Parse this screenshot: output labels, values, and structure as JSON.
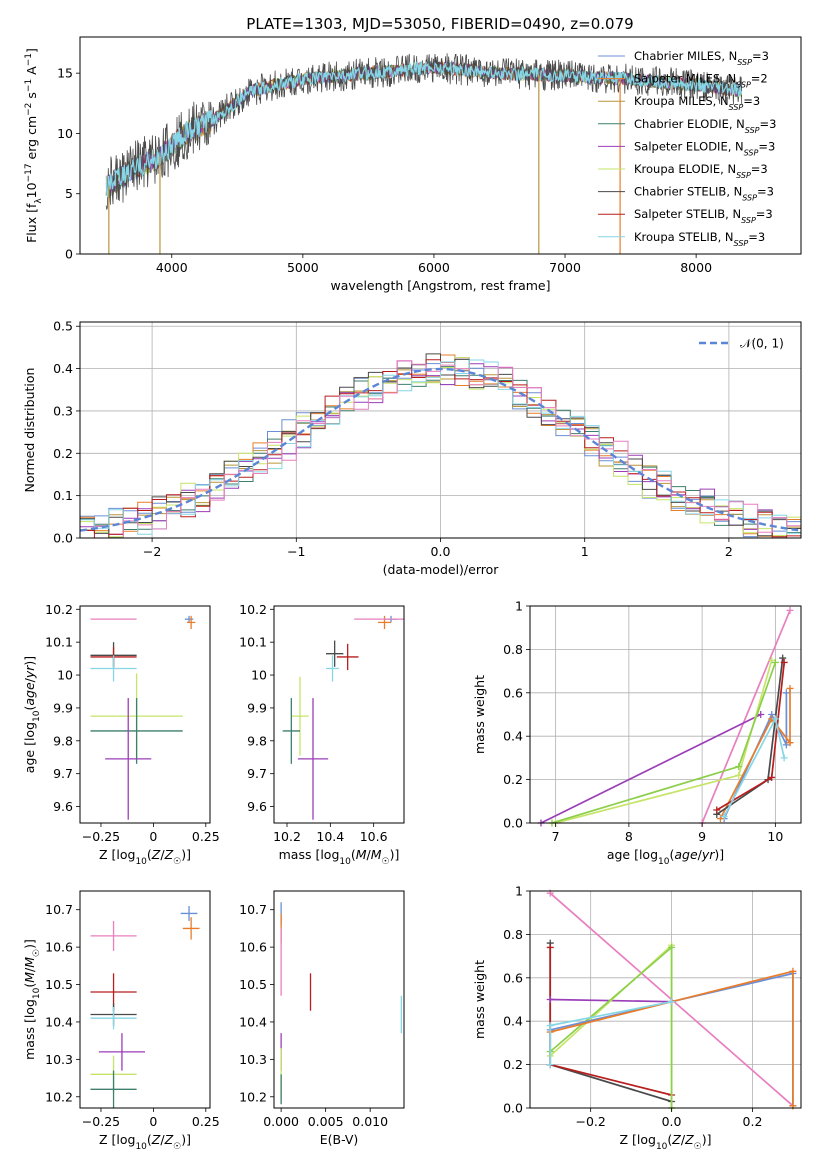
{
  "figure": {
    "title": "PLATE=1303, MJD=53050, FIBERID=0490, z=0.079"
  },
  "colors": {
    "Chabrier MILES": "#6b8fd6",
    "Salpeter MILES": "#e87d2b",
    "Kroupa MILES": "#b8963a",
    "Chabrier ELODIE": "#3f7f6e",
    "Salpeter ELODIE": "#9b3fb8",
    "Kroupa ELODIE": "#c6e46a",
    "Chabrier STELIB": "#4a4a4a",
    "Salpeter STELIB": "#b81e1e",
    "Kroupa STELIB": "#86d6e6",
    "pink": "#e87fbf",
    "green": "#8ccf4a",
    "gauss": "#5b86d6"
  },
  "chart_data": [
    {
      "id": "spectrum",
      "type": "line",
      "xlabel": "wavelength [Angstrom, rest frame]",
      "ylabel": "Flux [f_λ 10^-17 erg cm^-2 s^-1 A^-1]",
      "xlim": [
        3300,
        8800
      ],
      "ylim": [
        0,
        18
      ],
      "xticks": [
        4000,
        5000,
        6000,
        7000,
        8000
      ],
      "yticks": [
        0,
        5,
        10,
        15
      ],
      "grid": false,
      "legend_position": "top-right",
      "legend": [
        {
          "base": "Chabrier MILES, N",
          "sub": "SSP",
          "tail": "=3"
        },
        {
          "base": "Salpeter MILES, N",
          "sub": "SSP",
          "tail": "=2"
        },
        {
          "base": "Kroupa MILES, N",
          "sub": "SSP",
          "tail": "=3"
        },
        {
          "base": "Chabrier ELODIE, N",
          "sub": "SSP",
          "tail": "=3"
        },
        {
          "base": "Salpeter ELODIE, N",
          "sub": "SSP",
          "tail": "=3"
        },
        {
          "base": "Kroupa ELODIE, N",
          "sub": "SSP",
          "tail": "=3"
        },
        {
          "base": "Chabrier STELIB, N",
          "sub": "SSP",
          "tail": "=3"
        },
        {
          "base": "Salpeter STELIB, N",
          "sub": "SSP",
          "tail": "=3"
        },
        {
          "base": "Kroupa STELIB, N",
          "sub": "SSP",
          "tail": "=3"
        }
      ],
      "continuum": [
        [
          3500,
          5.5
        ],
        [
          3700,
          7
        ],
        [
          3900,
          8
        ],
        [
          4100,
          10
        ],
        [
          4300,
          11
        ],
        [
          4600,
          13.5
        ],
        [
          5000,
          14.5
        ],
        [
          5500,
          15
        ],
        [
          6000,
          15.5
        ],
        [
          6500,
          15
        ],
        [
          7000,
          14.8
        ],
        [
          7500,
          14.5
        ],
        [
          8000,
          14
        ],
        [
          8350,
          13.5
        ]
      ],
      "dips": [
        [
          3520,
          0
        ],
        [
          3910,
          0
        ],
        [
          6800,
          0
        ],
        [
          7420,
          0
        ]
      ]
    },
    {
      "id": "residuals",
      "type": "histogram",
      "xlabel": "(data-model)/error",
      "ylabel": "Normed distribution",
      "xlim": [
        -2.5,
        2.5
      ],
      "ylim": [
        0,
        0.51
      ],
      "xticks": [
        -2,
        -1,
        0,
        1,
        2
      ],
      "yticks": [
        0.0,
        0.1,
        0.2,
        0.3,
        0.4,
        0.5
      ],
      "grid": true,
      "legend_position": "top-right",
      "legend": "𝒩(0, 1)",
      "gaussian": {
        "mu": 0,
        "sigma": 1
      }
    },
    {
      "id": "age-vs-Z",
      "type": "errorbar",
      "xlabel": "Z [log10(Z/Z☉)]",
      "ylabel": "age [log10(age/yr)]",
      "xlim": [
        -0.35,
        0.27
      ],
      "ylim": [
        9.55,
        10.21
      ],
      "xticks": [
        -0.25,
        0.0,
        0.25
      ],
      "yticks": [
        9.6,
        9.7,
        9.8,
        9.9,
        10.0,
        10.1,
        10.2
      ],
      "points": [
        {
          "x": 0.17,
          "y": 10.17,
          "xe": 0.02,
          "ye": 0.01,
          "series": "Chabrier MILES"
        },
        {
          "x": 0.18,
          "y": 10.16,
          "xe": 0.02,
          "ye": 0.02,
          "series": "Salpeter MILES"
        },
        {
          "x": -0.19,
          "y": 10.17,
          "xe": 0.11,
          "ye": 0.0,
          "series": "pink"
        },
        {
          "x": -0.19,
          "y": 10.06,
          "xe": 0.11,
          "ye": 0.04,
          "series": "Chabrier STELIB"
        },
        {
          "x": -0.19,
          "y": 10.055,
          "xe": 0.11,
          "ye": 0.03,
          "series": "Salpeter STELIB"
        },
        {
          "x": -0.19,
          "y": 10.02,
          "xe": 0.11,
          "ye": 0.04,
          "series": "Kroupa STELIB"
        },
        {
          "x": -0.08,
          "y": 9.875,
          "xe": 0.22,
          "ye": 0.13,
          "series": "Kroupa ELODIE"
        },
        {
          "x": -0.08,
          "y": 9.83,
          "xe": 0.22,
          "ye": 0.1,
          "series": "Chabrier ELODIE"
        },
        {
          "x": -0.12,
          "y": 9.745,
          "xe": 0.11,
          "ye": 0.185,
          "series": "Salpeter ELODIE"
        }
      ]
    },
    {
      "id": "age-vs-mass",
      "type": "errorbar",
      "xlabel": "mass [log10(M/M☉)]",
      "ylabel": "",
      "xlim": [
        10.14,
        10.74
      ],
      "ylim": [
        9.55,
        10.21
      ],
      "xticks": [
        10.2,
        10.4,
        10.6
      ],
      "yticks": [
        9.6,
        9.7,
        9.8,
        9.9,
        10.0,
        10.1,
        10.2
      ],
      "points": [
        {
          "x": 10.68,
          "y": 10.17,
          "xe": 0.03,
          "ye": 0.01,
          "series": "Chabrier MILES"
        },
        {
          "x": 10.65,
          "y": 10.16,
          "xe": 0.03,
          "ye": 0.02,
          "series": "Salpeter MILES"
        },
        {
          "x": 10.63,
          "y": 10.17,
          "xe": 0.12,
          "ye": 0.0,
          "series": "pink"
        },
        {
          "x": 10.48,
          "y": 10.055,
          "xe": 0.05,
          "ye": 0.04,
          "series": "Salpeter STELIB"
        },
        {
          "x": 10.42,
          "y": 10.065,
          "xe": 0.04,
          "ye": 0.04,
          "series": "Chabrier STELIB"
        },
        {
          "x": 10.41,
          "y": 10.02,
          "xe": 0.03,
          "ye": 0.04,
          "series": "Kroupa STELIB"
        },
        {
          "x": 10.26,
          "y": 9.875,
          "xe": 0.04,
          "ye": 0.12,
          "series": "Kroupa ELODIE"
        },
        {
          "x": 10.22,
          "y": 9.83,
          "xe": 0.04,
          "ye": 0.1,
          "series": "Chabrier ELODIE"
        },
        {
          "x": 10.32,
          "y": 9.745,
          "xe": 0.07,
          "ye": 0.185,
          "series": "Salpeter ELODIE"
        }
      ]
    },
    {
      "id": "weight-vs-age",
      "type": "line",
      "xlabel": "age [log10(age/yr)]",
      "ylabel": "mass weight",
      "xlim": [
        6.65,
        10.35
      ],
      "ylim": [
        0,
        1
      ],
      "xticks": [
        7,
        8,
        9,
        10
      ],
      "yticks": [
        0.0,
        0.2,
        0.4,
        0.6,
        0.8,
        1.0
      ],
      "grid": true,
      "series": [
        {
          "color": "pink",
          "x": [
            9.0,
            10.2
          ],
          "y": [
            0.0,
            0.98
          ]
        },
        {
          "color": "Salpeter ELODIE",
          "x": [
            6.8,
            9.8
          ],
          "y": [
            0.0,
            0.5
          ]
        },
        {
          "color": "Kroupa ELODIE",
          "x": [
            7.0,
            9.5,
            9.95
          ],
          "y": [
            0.0,
            0.22,
            0.75
          ]
        },
        {
          "color": "green",
          "x": [
            6.95,
            9.5,
            10.0
          ],
          "y": [
            0.0,
            0.26,
            0.74
          ]
        },
        {
          "color": "Chabrier MILES",
          "x": [
            9.3,
            9.95,
            10.15,
            10.15
          ],
          "y": [
            0.02,
            0.5,
            0.36,
            0.6
          ]
        },
        {
          "color": "Salpeter MILES",
          "x": [
            9.25,
            9.95,
            10.2,
            10.2
          ],
          "y": [
            0.02,
            0.48,
            0.37,
            0.62
          ]
        },
        {
          "color": "Chabrier STELIB",
          "x": [
            9.2,
            9.9,
            10.1
          ],
          "y": [
            0.04,
            0.2,
            0.76
          ]
        },
        {
          "color": "Salpeter STELIB",
          "x": [
            9.2,
            9.95,
            10.12
          ],
          "y": [
            0.06,
            0.21,
            0.74
          ]
        },
        {
          "color": "Kroupa STELIB",
          "x": [
            9.3,
            10.0,
            10.12
          ],
          "y": [
            0.03,
            0.48,
            0.3
          ]
        }
      ]
    },
    {
      "id": "mass-vs-Z",
      "type": "errorbar",
      "xlabel": "Z [log10(Z/Z☉)]",
      "ylabel": "mass [log10(M/M☉)]",
      "xlim": [
        -0.35,
        0.27
      ],
      "ylim": [
        10.17,
        10.75
      ],
      "xticks": [
        -0.25,
        0.0,
        0.25
      ],
      "yticks": [
        10.2,
        10.3,
        10.4,
        10.5,
        10.6,
        10.7
      ],
      "points": [
        {
          "x": 0.17,
          "y": 10.69,
          "xe": 0.04,
          "ye": 0.02,
          "series": "Chabrier MILES"
        },
        {
          "x": 0.18,
          "y": 10.65,
          "xe": 0.04,
          "ye": 0.03,
          "series": "Salpeter MILES"
        },
        {
          "x": -0.19,
          "y": 10.63,
          "xe": 0.11,
          "ye": 0.04,
          "series": "pink"
        },
        {
          "x": -0.19,
          "y": 10.48,
          "xe": 0.11,
          "ye": 0.05,
          "series": "Salpeter STELIB"
        },
        {
          "x": -0.19,
          "y": 10.42,
          "xe": 0.11,
          "ye": 0.03,
          "series": "Chabrier STELIB"
        },
        {
          "x": -0.19,
          "y": 10.41,
          "xe": 0.11,
          "ye": 0.03,
          "series": "Kroupa STELIB"
        },
        {
          "x": -0.15,
          "y": 10.32,
          "xe": 0.11,
          "ye": 0.05,
          "series": "Salpeter ELODIE"
        },
        {
          "x": -0.19,
          "y": 10.26,
          "xe": 0.11,
          "ye": 0.05,
          "series": "Kroupa ELODIE"
        },
        {
          "x": -0.19,
          "y": 10.22,
          "xe": 0.11,
          "ye": 0.05,
          "series": "Chabrier ELODIE"
        }
      ]
    },
    {
      "id": "mass-vs-EBV",
      "type": "errorbar",
      "xlabel": "E(B-V)",
      "ylabel": "",
      "xlim": [
        -0.0008,
        0.0138
      ],
      "ylim": [
        10.17,
        10.75
      ],
      "xticks": [
        0.0,
        0.005,
        0.01
      ],
      "xticklabels": [
        "0.000",
        "0.005",
        "0.010"
      ],
      "yticks": [
        10.2,
        10.3,
        10.4,
        10.5,
        10.6,
        10.7
      ],
      "points": [
        {
          "x": 0.0,
          "y": 10.69,
          "xe": 0.0,
          "ye": 0.03,
          "series": "Chabrier MILES"
        },
        {
          "x": 0.0,
          "y": 10.65,
          "xe": 0.0,
          "ye": 0.04,
          "series": "Salpeter MILES"
        },
        {
          "x": 0.0,
          "y": 10.56,
          "xe": 0.0,
          "ye": 0.09,
          "series": "pink"
        },
        {
          "x": 0.0033,
          "y": 10.48,
          "xe": 0.0,
          "ye": 0.05,
          "series": "Salpeter STELIB"
        },
        {
          "x": 0.0135,
          "y": 10.42,
          "xe": 0.0,
          "ye": 0.05,
          "series": "Kroupa STELIB"
        },
        {
          "x": 0.0,
          "y": 10.32,
          "xe": 0.0,
          "ye": 0.05,
          "series": "Salpeter ELODIE"
        },
        {
          "x": 0.0,
          "y": 10.26,
          "xe": 0.0,
          "ye": 0.07,
          "series": "Kroupa ELODIE"
        },
        {
          "x": 0.0,
          "y": 10.22,
          "xe": 0.0,
          "ye": 0.04,
          "series": "Chabrier ELODIE"
        }
      ]
    },
    {
      "id": "weight-vs-Z",
      "type": "line",
      "xlabel": "Z [log10(Z/Z☉)]",
      "ylabel": "mass weight",
      "xlim": [
        -0.35,
        0.32
      ],
      "ylim": [
        0,
        1
      ],
      "xticks": [
        -0.2,
        0.0,
        0.2
      ],
      "yticks": [
        0.0,
        0.2,
        0.4,
        0.6,
        0.8,
        1.0
      ],
      "grid": true,
      "series": [
        {
          "color": "pink",
          "x": [
            -0.3,
            0.3
          ],
          "y": [
            0.99,
            0.01
          ]
        },
        {
          "color": "Chabrier STELIB",
          "x": [
            -0.3,
            -0.3,
            0.0
          ],
          "y": [
            0.76,
            0.2,
            0.03
          ]
        },
        {
          "color": "Salpeter STELIB",
          "x": [
            -0.3,
            -0.3,
            0.0
          ],
          "y": [
            0.74,
            0.2,
            0.06
          ]
        },
        {
          "color": "Salpeter ELODIE",
          "x": [
            -0.3,
            0.0
          ],
          "y": [
            0.5,
            0.49
          ]
        },
        {
          "color": "Kroupa ELODIE",
          "x": [
            -0.3,
            0.0,
            0.0
          ],
          "y": [
            0.24,
            0.75,
            0.0
          ]
        },
        {
          "color": "green",
          "x": [
            -0.3,
            0.0,
            0.0
          ],
          "y": [
            0.26,
            0.74,
            0.0
          ]
        },
        {
          "color": "Chabrier MILES",
          "x": [
            -0.3,
            0.0,
            0.3,
            0.3
          ],
          "y": [
            0.36,
            0.49,
            0.62,
            0.01
          ]
        },
        {
          "color": "Salpeter MILES",
          "x": [
            -0.3,
            0.0,
            0.3,
            0.3
          ],
          "y": [
            0.35,
            0.49,
            0.63,
            0.01
          ]
        },
        {
          "color": "Kroupa STELIB",
          "x": [
            -0.3,
            -0.3,
            0.0
          ],
          "y": [
            0.2,
            0.38,
            0.49
          ]
        }
      ]
    }
  ]
}
